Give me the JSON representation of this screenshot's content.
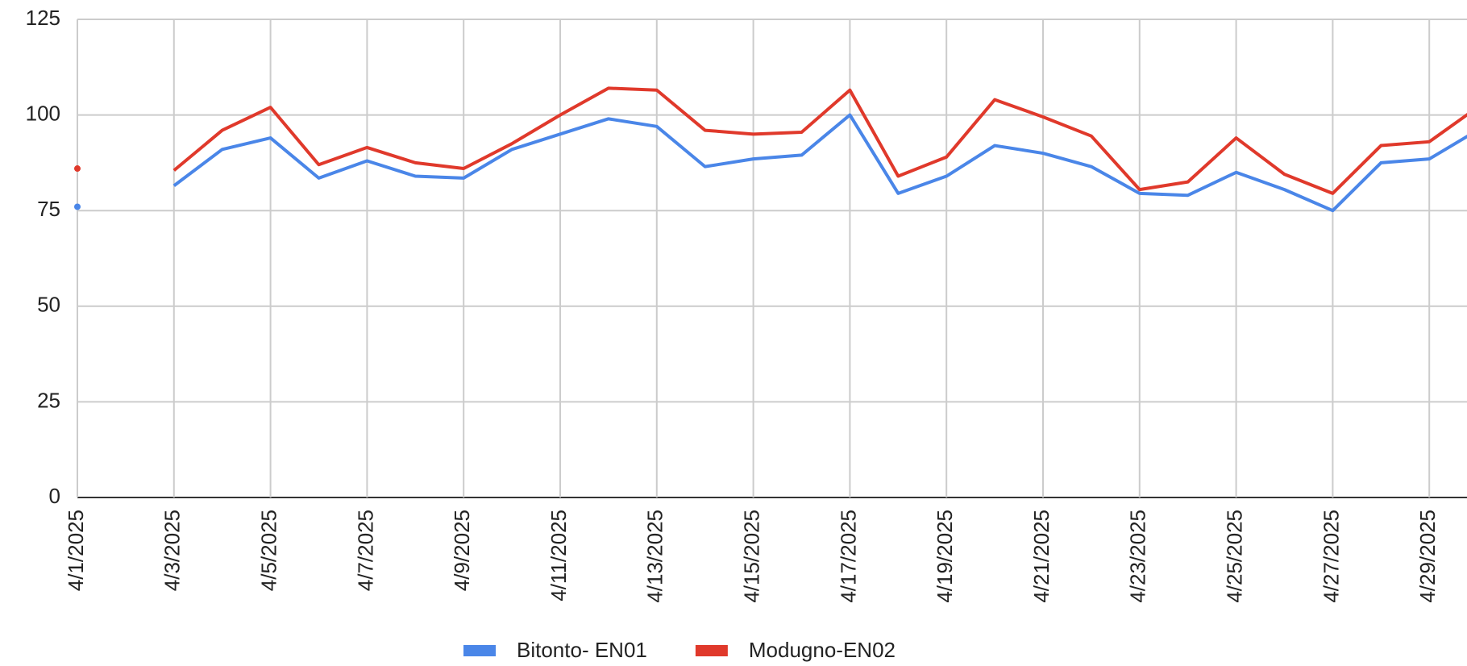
{
  "chart_data": {
    "type": "line",
    "categories": [
      "4/1/2025",
      null,
      "4/3/2025",
      null,
      "4/5/2025",
      null,
      "4/7/2025",
      null,
      "4/9/2025",
      null,
      "4/11/2025",
      null,
      "4/13/2025",
      null,
      "4/15/2025",
      null,
      "4/17/2025",
      null,
      "4/19/2025",
      null,
      "4/21/2025",
      null,
      "4/23/2025",
      null,
      "4/25/2025",
      null,
      "4/27/2025",
      null,
      "4/29/2025",
      null
    ],
    "series": [
      {
        "name": "Bitonto- EN01",
        "color": "#4a86e8",
        "values": [
          76,
          null,
          81.5,
          91,
          94,
          83.5,
          88,
          84,
          83.5,
          91,
          95,
          99,
          97,
          86.5,
          88.5,
          89.5,
          100,
          79.5,
          84,
          92,
          90,
          86.5,
          79.5,
          79,
          85,
          80.5,
          75,
          87.5,
          88.5,
          96
        ]
      },
      {
        "name": "Modugno-EN02",
        "color": "#e0392b",
        "values": [
          86,
          null,
          85.5,
          96,
          102,
          87,
          91.5,
          87.5,
          86,
          92.5,
          100,
          107,
          106.5,
          96,
          95,
          95.5,
          106.5,
          84,
          89,
          104,
          99.5,
          94.5,
          80.5,
          82.5,
          94,
          84.5,
          79.5,
          92,
          93,
          102
        ]
      }
    ],
    "ylim": [
      0,
      125
    ],
    "yticks": [
      0,
      25,
      50,
      75,
      100,
      125
    ],
    "grid": true,
    "legend": "bottom"
  }
}
